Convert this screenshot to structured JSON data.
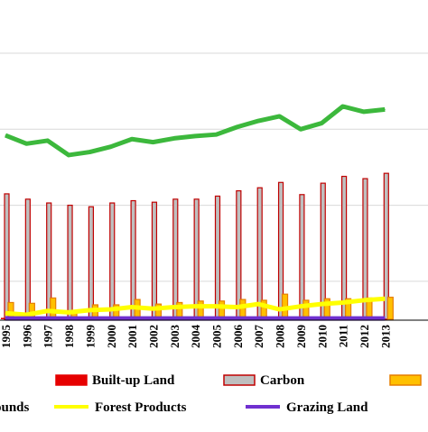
{
  "chart_data": {
    "type": "bar",
    "categories": [
      "1995",
      "1996",
      "1997",
      "1998",
      "1999",
      "2000",
      "2001",
      "2002",
      "2003",
      "2004",
      "2005",
      "2006",
      "2007",
      "2008",
      "2009",
      "2010",
      "2011",
      "2012",
      "2013"
    ],
    "x_tick_labels": [
      "1995",
      "1996",
      "1997",
      "1998",
      "1999",
      "2000",
      "2001",
      "2002",
      "2003",
      "2004",
      "2005",
      "2006",
      "2007",
      "2008",
      "2009",
      "2010",
      "2011",
      "2012",
      "2013"
    ],
    "ylim": [
      0,
      4.2
    ],
    "grid": "horizontal",
    "legend_position": "bottom",
    "series": [
      {
        "name": "Built-up Land",
        "mark": "bar",
        "color": "#e60000",
        "values": [
          0.019,
          0.019,
          0.019,
          0.019,
          0.019,
          0.019,
          0.019,
          0.019,
          0.019,
          0.019,
          0.019,
          0.019,
          0.019,
          0.019,
          0.019,
          0.019,
          0.019,
          0.019,
          0.019
        ]
      },
      {
        "name": "Carbon",
        "mark": "bar",
        "color": "#bfbfbf",
        "edge": "#c00000",
        "values": [
          1.65,
          1.58,
          1.53,
          1.5,
          1.48,
          1.53,
          1.56,
          1.54,
          1.58,
          1.58,
          1.62,
          1.69,
          1.73,
          1.8,
          1.64,
          1.79,
          1.88,
          1.85,
          1.92
        ]
      },
      {
        "name": "",
        "mark": "bar",
        "color": "#ffc000",
        "edge": "#e67e00",
        "values": [
          0.22,
          0.21,
          0.28,
          0.11,
          0.19,
          0.19,
          0.26,
          0.2,
          0.22,
          0.24,
          0.24,
          0.26,
          0.25,
          0.33,
          0.25,
          0.27,
          0.27,
          0.28,
          0.29
        ]
      },
      {
        "name": "",
        "mark": "line",
        "color": "#3cb83c",
        "values": [
          2.42,
          2.31,
          2.35,
          2.16,
          2.2,
          2.27,
          2.37,
          2.33,
          2.38,
          2.41,
          2.43,
          2.53,
          2.61,
          2.67,
          2.5,
          2.58,
          2.8,
          2.73,
          2.76
        ]
      },
      {
        "name": "Forest Products",
        "mark": "line",
        "color": "#ffff00",
        "values": [
          0.08,
          0.06,
          0.11,
          0.09,
          0.12,
          0.13,
          0.16,
          0.14,
          0.16,
          0.17,
          0.17,
          0.16,
          0.2,
          0.13,
          0.17,
          0.2,
          0.22,
          0.25,
          0.27
        ]
      },
      {
        "name": "Grazing Land",
        "mark": "line",
        "color": "#7030d0",
        "values": [
          0.01,
          0.01,
          0.01,
          0.01,
          0.01,
          0.01,
          0.01,
          0.01,
          0.01,
          0.01,
          0.01,
          0.01,
          0.01,
          0.01,
          0.01,
          0.01,
          0.01,
          0.01,
          0.01
        ]
      }
    ],
    "legend": {
      "items": [
        {
          "label": "Built-up Land",
          "swatch": "bar",
          "fill": "#e60000",
          "edge": "#e60000"
        },
        {
          "label": "Carbon",
          "swatch": "bar",
          "fill": "#bfbfbf",
          "edge": "#c00000"
        },
        {
          "label": "",
          "swatch": "bar",
          "fill": "#ffc000",
          "edge": "#e67e00"
        },
        {
          "label": "ounds",
          "swatch": "none",
          "fill": "#000000",
          "edge": "#000000"
        },
        {
          "label": "Forest Products",
          "swatch": "line",
          "fill": "#ffff00",
          "edge": "#ffff00"
        },
        {
          "label": "Grazing Land",
          "swatch": "line",
          "fill": "#7030d0",
          "edge": "#7030d0"
        }
      ]
    }
  }
}
